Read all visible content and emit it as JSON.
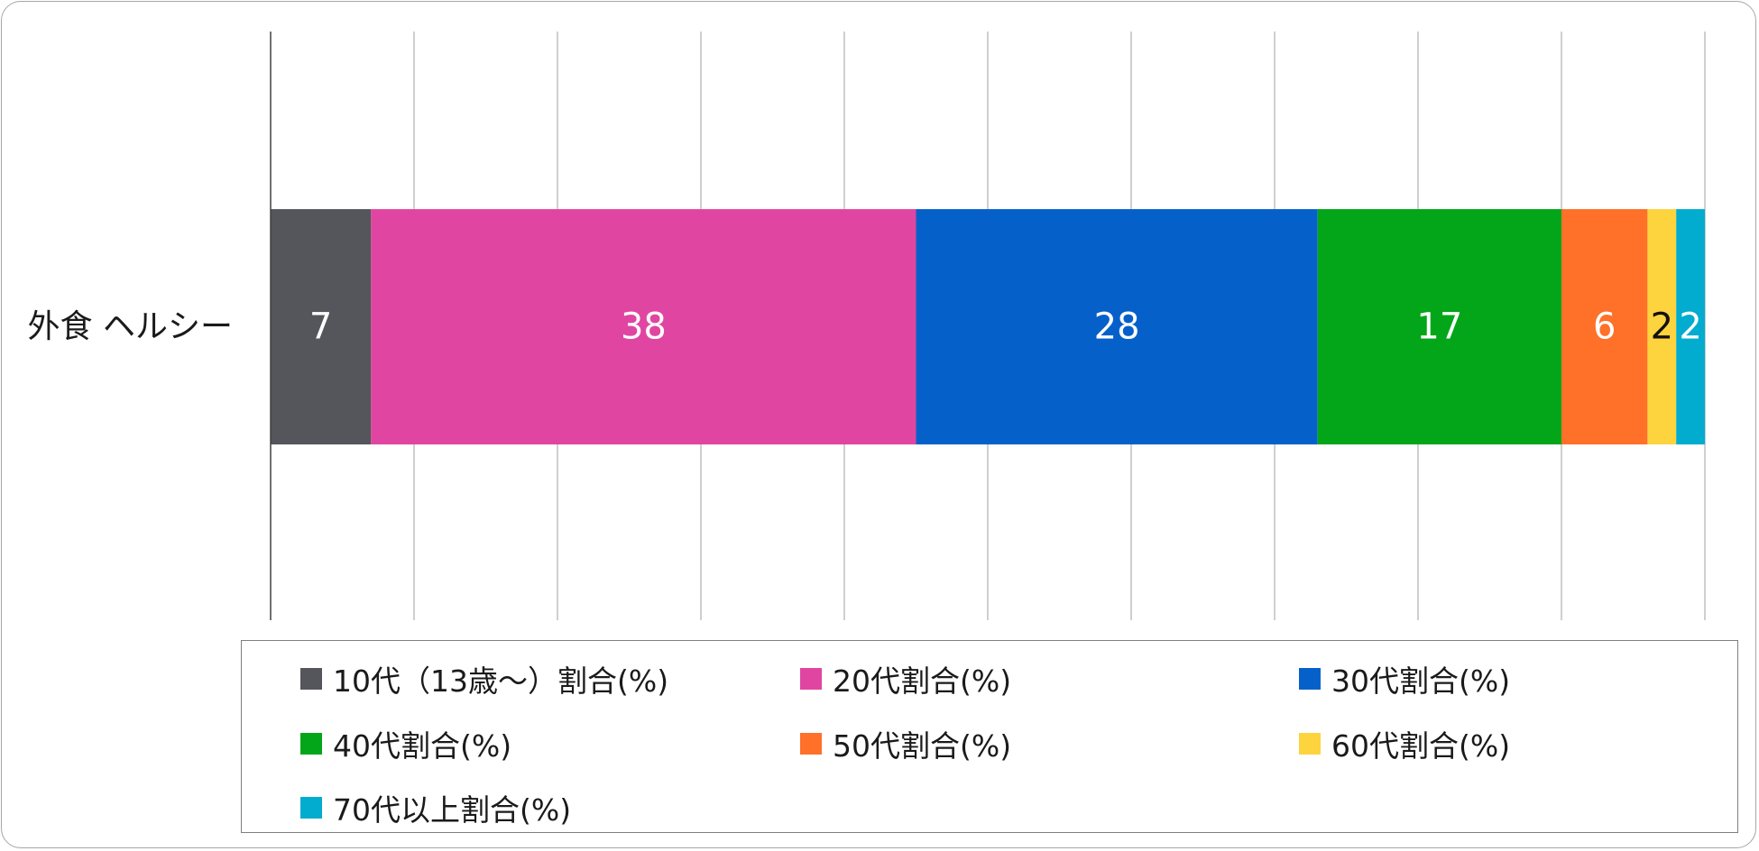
{
  "chart_data": {
    "type": "bar",
    "orientation": "horizontal",
    "stacked": true,
    "categories": [
      "外食 ヘルシー"
    ],
    "series": [
      {
        "name": "10代（13歳～）割合(%)",
        "values": [
          7
        ],
        "color": "#54565b",
        "label_color": "#ffffff"
      },
      {
        "name": "20代割合(%)",
        "values": [
          38
        ],
        "color": "#e046a1",
        "label_color": "#ffffff"
      },
      {
        "name": "30代割合(%)",
        "values": [
          28
        ],
        "color": "#0561c9",
        "label_color": "#ffffff"
      },
      {
        "name": "40代割合(%)",
        "values": [
          17
        ],
        "color": "#02a618",
        "label_color": "#ffffff"
      },
      {
        "name": "50代割合(%)",
        "values": [
          6
        ],
        "color": "#ff7028",
        "label_color": "#ffffff"
      },
      {
        "name": "60代割合(%)",
        "values": [
          2
        ],
        "color": "#fdd33e",
        "label_color": "#111111"
      },
      {
        "name": "70代以上割合(%)",
        "values": [
          2
        ],
        "color": "#02accf",
        "label_color": "#ffffff"
      }
    ],
    "xlim": [
      0,
      100
    ],
    "gridlines": true,
    "gridline_color": "#bfbfbf",
    "legend_position": "bottom",
    "title": "",
    "xlabel": "",
    "ylabel": ""
  }
}
